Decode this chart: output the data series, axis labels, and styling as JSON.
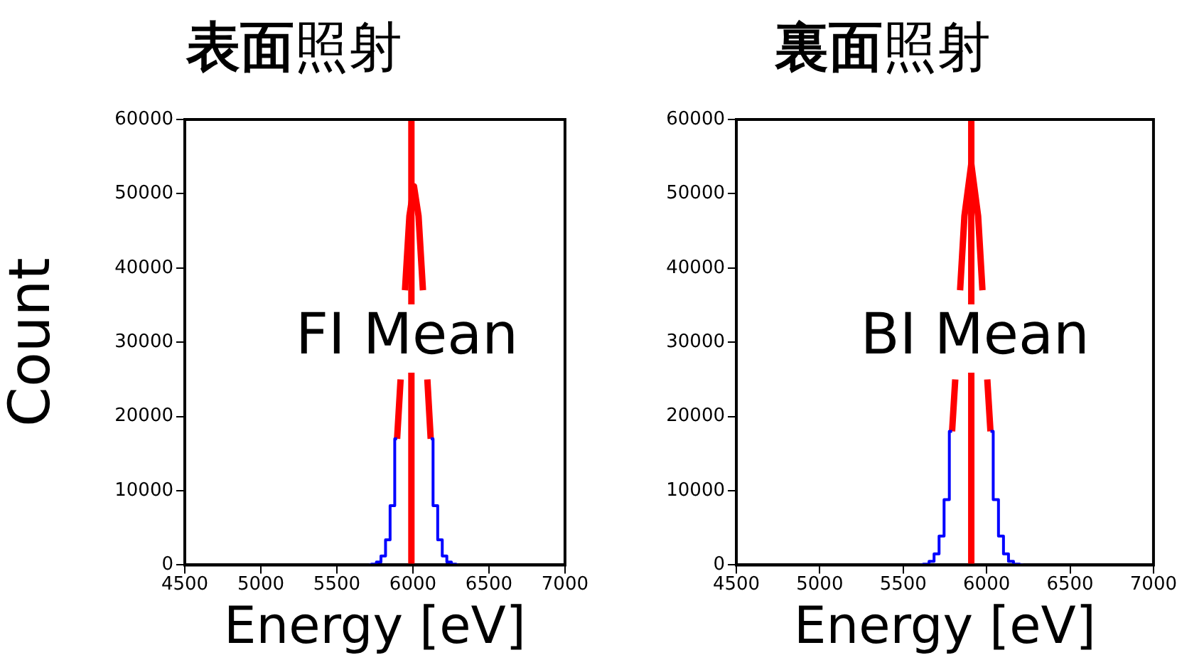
{
  "chart_data": [
    {
      "type": "line",
      "title": "表面照射",
      "xlabel": "Energy [eV]",
      "ylabel": "Count",
      "xlim": [
        4500,
        7000
      ],
      "xticks": [
        4500,
        5000,
        5500,
        6000,
        6500,
        7000
      ],
      "ylim": [
        0,
        60000
      ],
      "yticks": [
        0,
        10000,
        20000,
        30000,
        40000,
        50000,
        60000
      ],
      "grid": false,
      "legend": false,
      "marker": "none",
      "series": [
        {
          "type": "step",
          "color": "#0000ff",
          "x": [
            5710,
            5745,
            5775,
            5805,
            5835,
            5865,
            5896,
            6000,
            6117,
            6148,
            6178,
            6208,
            6238,
            6268,
            6300
          ],
          "values": [
            0,
            100,
            400,
            1200,
            3400,
            8000,
            17000,
            null,
            17000,
            8000,
            3400,
            1200,
            400,
            100,
            0
          ]
        },
        {
          "color": "#ff0000",
          "x": [
            5896,
            5919,
            5930,
            5948,
            5977,
            6007,
            6037,
            6066,
            6080,
            6095,
            6117
          ],
          "values": [
            17000,
            25000,
            null,
            37000,
            47000,
            51000,
            47000,
            37000,
            null,
            25000,
            17000
          ]
        }
      ],
      "ref_lines": [
        {
          "axis": "x",
          "value": 5990,
          "color": "#ff0000"
        }
      ],
      "annotations": [
        {
          "text": "FI Mean",
          "x": 5960,
          "y": 30500
        }
      ]
    },
    {
      "type": "line",
      "title": "裏面照射",
      "xlabel": "Energy [eV]",
      "xlim": [
        4500,
        7000
      ],
      "xticks": [
        4500,
        5000,
        5500,
        6000,
        6500,
        7000
      ],
      "ylim": [
        0,
        60000
      ],
      "yticks": [
        0,
        10000,
        20000,
        30000,
        40000,
        50000,
        60000
      ],
      "grid": false,
      "legend": false,
      "marker": "none",
      "series": [
        {
          "type": "step",
          "color": "#0000ff",
          "x": [
            5600,
            5640,
            5670,
            5700,
            5730,
            5760,
            5793,
            5900,
            6023,
            6056,
            6086,
            6116,
            6146,
            6176,
            6220
          ],
          "values": [
            0,
            100,
            500,
            1500,
            3900,
            8800,
            18000,
            null,
            18000,
            8800,
            3900,
            1500,
            500,
            100,
            0
          ]
        },
        {
          "color": "#ff0000",
          "x": [
            5793,
            5812,
            5825,
            5841,
            5867,
            5908,
            5949,
            5975,
            5990,
            6004,
            6023
          ],
          "values": [
            18000,
            25000,
            null,
            37000,
            47000,
            54000,
            47000,
            37000,
            null,
            25000,
            18000
          ]
        }
      ],
      "ref_lines": [
        {
          "axis": "x",
          "value": 5908,
          "color": "#ff0000"
        }
      ],
      "annotations": [
        {
          "text": "BI Mean",
          "x": 5930,
          "y": 30500
        }
      ]
    }
  ]
}
